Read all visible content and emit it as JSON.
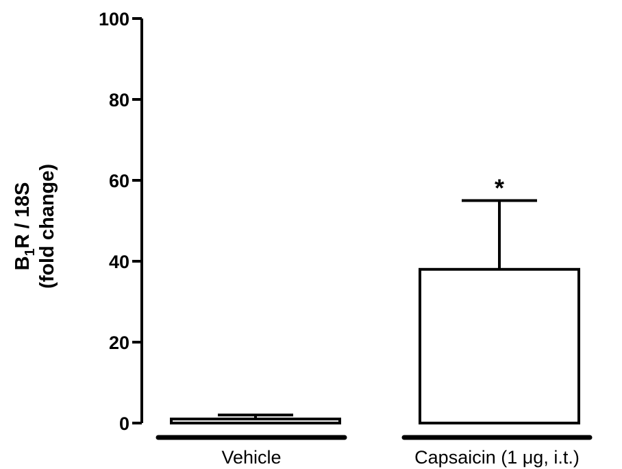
{
  "chart_data": {
    "type": "bar",
    "categories": [
      "Vehicle",
      "Capsaicin (1 μg, i.t.)"
    ],
    "values": [
      1,
      38
    ],
    "error_upper": [
      2,
      55
    ],
    "annotations": [
      "",
      "*"
    ],
    "ylabel_line1_main": "B",
    "ylabel_line1_sub": "1",
    "ylabel_line1_rest": "R / 18S",
    "ylabel_line2": "(fold change)",
    "yticks": [
      "0",
      "20",
      "40",
      "60",
      "80",
      "100"
    ],
    "ylim": [
      0,
      100
    ],
    "bar_fill": "#ffffff",
    "bar_stroke": "#000000",
    "grid": false
  }
}
